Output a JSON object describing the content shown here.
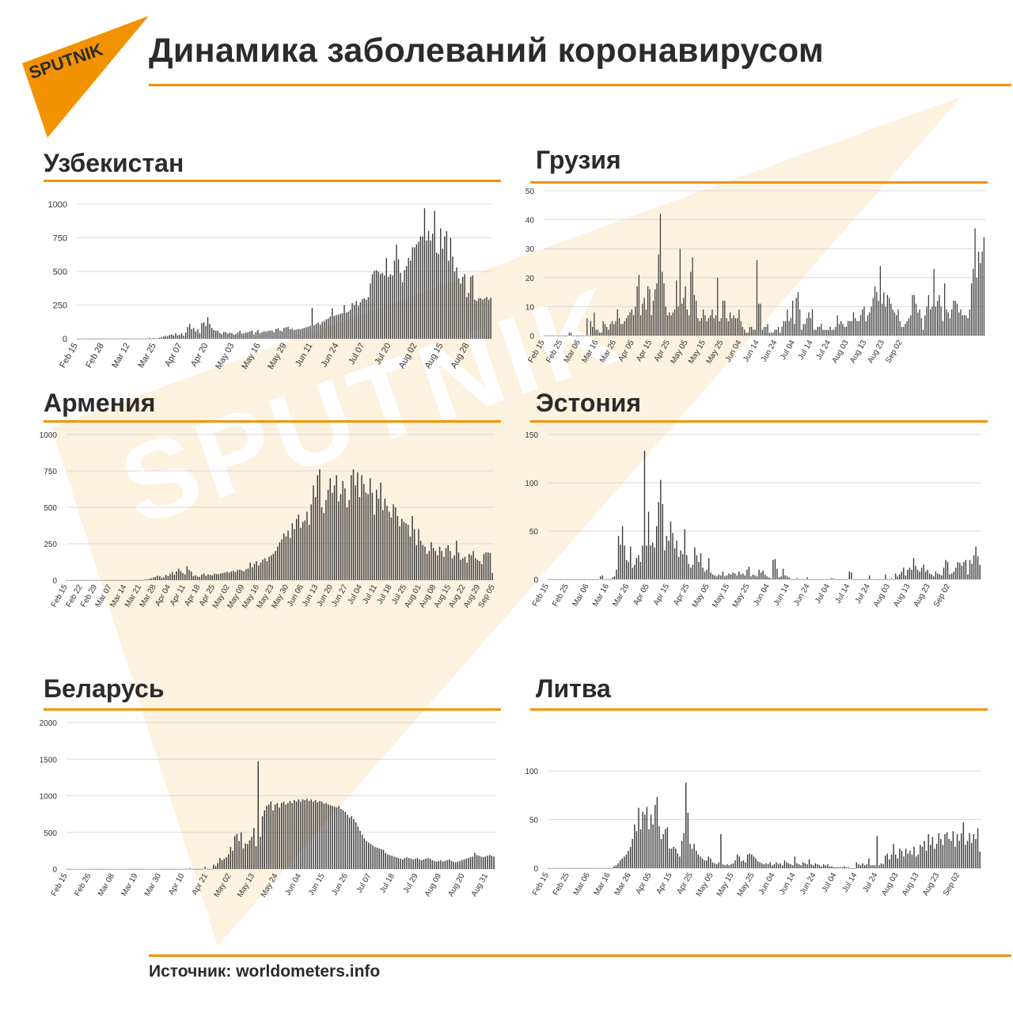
{
  "header": {
    "title": "Динамика заболеваний коронавирусом",
    "logo_text": "SPUTNIK",
    "watermark_text": "SPUTNIK"
  },
  "footer": {
    "source": "Источник: worldometers.info"
  },
  "colors": {
    "accent": "#f39200",
    "bar": "#3a3a3a",
    "grid": "#d9d9d9",
    "text": "#2b2b2b",
    "watermark": "#fdf1df"
  },
  "chart_data": [
    {
      "id": "uzbekistan",
      "title": "Узбекистан",
      "type": "bar",
      "y_ticks": [
        0,
        250,
        500,
        750,
        1000
      ],
      "ylim": [
        0,
        1000
      ],
      "x_ticks": [
        "Feb 15",
        "Feb 28",
        "Mar 12",
        "Mar 25",
        "Apr 07",
        "Apr 20",
        "May 03",
        "May 16",
        "May 29",
        "Jun 11",
        "Jun 24",
        "Jul 07",
        "Jul 20",
        "Aug 02",
        "Aug 15",
        "Aug 28"
      ],
      "x_start": "Feb 15",
      "grid": true,
      "daily_values": [
        0,
        0,
        0,
        0,
        0,
        0,
        0,
        0,
        0,
        0,
        0,
        0,
        0,
        0,
        0,
        0,
        0,
        0,
        0,
        0,
        0,
        0,
        0,
        0,
        0,
        0,
        0,
        0,
        0,
        0,
        0,
        0,
        0,
        0,
        0,
        3,
        7,
        0,
        6,
        2,
        4,
        8,
        11,
        16,
        22,
        18,
        28,
        32,
        24,
        40,
        25,
        30,
        39,
        22,
        45,
        86,
        110,
        72,
        80,
        55,
        70,
        42,
        115,
        122,
        95,
        160,
        110,
        80,
        65,
        58,
        60,
        42,
        35,
        50,
        48,
        38,
        45,
        42,
        30,
        35,
        45,
        58,
        38,
        40,
        45,
        48,
        55,
        62,
        30,
        50,
        65,
        40,
        48,
        55,
        52,
        58,
        60,
        62,
        48,
        72,
        78,
        60,
        55,
        80,
        85,
        90,
        70,
        75,
        65,
        68,
        72,
        70,
        75,
        80,
        85,
        90,
        95,
        230,
        100,
        110,
        120,
        105,
        125,
        130,
        145,
        150,
        165,
        225,
        170,
        175,
        180,
        185,
        190,
        250,
        195,
        200,
        215,
        265,
        250,
        280,
        245,
        270,
        295,
        300,
        290,
        310,
        410,
        480,
        505,
        510,
        500,
        480,
        490,
        470,
        600,
        460,
        480,
        470,
        580,
        700,
        590,
        490,
        420,
        510,
        540,
        600,
        580,
        680,
        680,
        700,
        720,
        760,
        760,
        970,
        730,
        800,
        730,
        780,
        950,
        640,
        630,
        820,
        670,
        760,
        800,
        580,
        750,
        610,
        500,
        530,
        450,
        410,
        460,
        480,
        310,
        340,
        460,
        470,
        290,
        280,
        300,
        300,
        290,
        300,
        310,
        290,
        305
      ]
    },
    {
      "id": "georgia",
      "title": "Грузия",
      "type": "bar",
      "y_ticks": [
        0,
        10,
        20,
        30,
        40,
        50
      ],
      "ylim": [
        0,
        50
      ],
      "x_ticks": [
        "Feb 15",
        "Feb 25",
        "Mar 06",
        "Mar 16",
        "Mar 26",
        "Apr 05",
        "Apr 15",
        "Apr 25",
        "May 05",
        "May 15",
        "May 25",
        "Jun 04",
        "Jun 14",
        "Jun 24",
        "Jul 04",
        "Jul 14",
        "Jul 24",
        "Aug 03",
        "Aug 13",
        "Aug 23",
        "Sep 02"
      ],
      "x_start": "Feb 15",
      "grid": true,
      "daily_values": [
        0,
        0,
        0,
        0,
        0,
        0,
        0,
        0,
        0,
        0,
        0,
        0,
        0,
        0,
        1,
        1,
        0,
        0,
        0,
        0,
        0,
        0,
        0,
        0,
        6,
        0,
        5,
        3,
        8,
        2,
        2,
        1,
        1,
        5,
        4,
        3,
        2,
        4,
        5,
        4,
        5,
        9,
        6,
        4,
        4,
        5,
        6,
        7,
        8,
        9,
        7,
        10,
        17,
        21,
        7,
        11,
        13,
        9,
        17,
        16,
        7,
        12,
        16,
        18,
        28,
        42,
        22,
        18,
        10,
        7,
        8,
        7,
        8,
        9,
        19,
        10,
        30,
        11,
        13,
        17,
        9,
        7,
        22,
        27,
        14,
        12,
        6,
        5,
        6,
        9,
        7,
        5,
        6,
        7,
        9,
        6,
        7,
        20,
        5,
        6,
        12,
        12,
        6,
        5,
        8,
        6,
        7,
        6,
        6,
        9,
        5,
        3,
        2,
        1,
        1,
        3,
        3,
        2,
        2,
        26,
        11,
        11,
        2,
        3,
        3,
        4,
        1,
        1,
        1,
        2,
        2,
        3,
        1,
        3,
        5,
        5,
        9,
        5,
        6,
        12,
        4,
        13,
        15,
        9,
        2,
        4,
        4,
        6,
        8,
        6,
        9,
        2,
        2,
        3,
        3,
        4,
        2,
        2,
        2,
        2,
        3,
        2,
        2,
        3,
        7,
        4,
        5,
        4,
        3,
        3,
        5,
        5,
        5,
        8,
        6,
        5,
        5,
        7,
        9,
        10,
        5,
        7,
        8,
        10,
        13,
        17,
        15,
        12,
        24,
        11,
        15,
        10,
        14,
        13,
        11,
        9,
        8,
        7,
        9,
        5,
        3,
        3,
        4,
        5,
        6,
        7,
        14,
        14,
        11,
        8,
        9,
        6,
        2,
        7,
        10,
        14,
        9,
        10,
        23,
        10,
        12,
        14,
        10,
        5,
        18,
        9,
        8,
        6,
        9,
        12,
        12,
        11,
        8,
        9,
        7,
        7,
        7,
        6,
        9,
        18,
        23,
        37,
        20,
        29,
        25,
        29,
        34
      ]
    },
    {
      "id": "armenia",
      "title": "Армения",
      "type": "bar",
      "y_ticks": [
        0,
        250,
        500,
        750,
        1000
      ],
      "ylim": [
        0,
        1000
      ],
      "x_ticks": [
        "Feb 15",
        "Feb 22",
        "Feb 29",
        "Mar 07",
        "Mar 14",
        "Mar 21",
        "Mar 28",
        "Apr 04",
        "Apr 11",
        "Apr 18",
        "Apr 25",
        "May 02",
        "May 09",
        "May 16",
        "May 23",
        "May 30",
        "Jun 06",
        "Jun 13",
        "Jun 20",
        "Jun 27",
        "Jul 04",
        "Jul 11",
        "Jul 18",
        "Jul 25",
        "Aug 01",
        "Aug 08",
        "Aug 15",
        "Aug 22",
        "Aug 29",
        "Sep 05"
      ],
      "x_start": "Feb 15",
      "grid": true,
      "daily_values": [
        0,
        0,
        0,
        0,
        0,
        0,
        0,
        0,
        0,
        0,
        0,
        0,
        0,
        0,
        0,
        0,
        0,
        0,
        0,
        0,
        0,
        0,
        0,
        0,
        0,
        0,
        0,
        0,
        0,
        0,
        0,
        0,
        0,
        0,
        0,
        1,
        0,
        3,
        5,
        8,
        12,
        18,
        22,
        30,
        25,
        14,
        20,
        35,
        28,
        42,
        55,
        38,
        60,
        78,
        62,
        48,
        40,
        95,
        70,
        58,
        28,
        32,
        24,
        22,
        38,
        45,
        30,
        40,
        36,
        32,
        44,
        41,
        40,
        46,
        48,
        52,
        58,
        50,
        60,
        65,
        55,
        70,
        72,
        68,
        60,
        75,
        80,
        120,
        88,
        110,
        130,
        100,
        120,
        140,
        150,
        130,
        160,
        170,
        180,
        200,
        230,
        260,
        280,
        320,
        300,
        340,
        290,
        390,
        350,
        420,
        450,
        360,
        400,
        410,
        470,
        380,
        520,
        650,
        570,
        720,
        760,
        500,
        460,
        550,
        620,
        700,
        600,
        650,
        720,
        540,
        590,
        680,
        630,
        500,
        550,
        720,
        760,
        650,
        740,
        570,
        720,
        660,
        600,
        590,
        700,
        600,
        450,
        620,
        560,
        670,
        480,
        560,
        510,
        470,
        430,
        520,
        500,
        440,
        370,
        420,
        400,
        390,
        380,
        300,
        440,
        350,
        240,
        350,
        270,
        240,
        230,
        180,
        200,
        260,
        220,
        200,
        170,
        230,
        200,
        160,
        220,
        240,
        200,
        150,
        170,
        270,
        190,
        140,
        150,
        160,
        120,
        180,
        170,
        200,
        150,
        140,
        130,
        110,
        180,
        190,
        190,
        185,
        50
      ]
    },
    {
      "id": "estonia",
      "title": "Эстония",
      "type": "bar",
      "y_ticks": [
        0,
        50,
        100,
        150
      ],
      "ylim": [
        0,
        150
      ],
      "x_ticks": [
        "Feb 15",
        "Feb 25",
        "Mar 06",
        "Mar 16",
        "Mar 26",
        "Apr 05",
        "Apr 15",
        "Apr 25",
        "May 05",
        "May 15",
        "May 25",
        "Jun 04",
        "Jun 14",
        "Jun 24",
        "Jul 04",
        "Jul 14",
        "Jul 24",
        "Aug 03",
        "Aug 13",
        "Aug 23",
        "Sep 02"
      ],
      "x_start": "Feb 15",
      "grid": true,
      "daily_values": [
        0,
        0,
        0,
        0,
        0,
        0,
        0,
        0,
        0,
        0,
        0,
        0,
        0,
        0,
        0,
        0,
        0,
        0,
        0,
        0,
        0,
        0,
        0,
        0,
        0,
        0,
        3,
        4,
        0,
        0,
        0,
        0,
        2,
        3,
        10,
        45,
        36,
        55,
        35,
        20,
        18,
        34,
        12,
        15,
        22,
        25,
        18,
        35,
        133,
        35,
        70,
        35,
        38,
        33,
        55,
        80,
        103,
        78,
        30,
        45,
        40,
        60,
        48,
        32,
        40,
        23,
        30,
        26,
        52,
        25,
        16,
        12,
        15,
        33,
        25,
        18,
        27,
        12,
        8,
        10,
        22,
        7,
        5,
        4,
        3,
        5,
        4,
        8,
        3,
        4,
        6,
        5,
        7,
        6,
        4,
        8,
        5,
        6,
        4,
        10,
        13,
        3,
        5,
        4,
        3,
        10,
        7,
        9,
        5,
        3,
        2,
        1,
        20,
        21,
        11,
        2,
        3,
        11,
        4,
        3,
        2,
        0,
        0,
        0,
        1,
        0,
        0,
        0,
        0,
        2,
        0,
        0,
        0,
        0,
        0,
        0,
        0,
        0,
        0,
        0,
        0,
        1,
        1,
        0,
        0,
        0,
        0,
        0,
        0,
        0,
        8,
        7,
        0,
        0,
        0,
        0,
        0,
        0,
        0,
        0,
        4,
        0,
        0,
        0,
        0,
        0,
        0,
        0,
        5,
        0,
        0,
        1,
        0,
        6,
        3,
        5,
        8,
        12,
        4,
        10,
        12,
        10,
        22,
        14,
        10,
        8,
        12,
        15,
        8,
        10,
        6,
        5,
        3,
        8,
        6,
        5,
        4,
        12,
        20,
        18,
        5,
        6,
        8,
        12,
        18,
        17,
        14,
        18,
        20,
        5,
        20,
        16,
        25,
        34,
        24,
        15
      ]
    },
    {
      "id": "belarus",
      "title": "Беларусь",
      "type": "bar",
      "y_ticks": [
        0,
        500,
        1000,
        1500,
        2000
      ],
      "ylim": [
        0,
        2000
      ],
      "x_ticks": [
        "Feb 15",
        "Feb 26",
        "Mar 08",
        "Mar 19",
        "Mar 30",
        "Apr 10",
        "Apr 21",
        "May 02",
        "May 13",
        "May 24",
        "Jun 04",
        "Jun 15",
        "Jun 26",
        "Jul 07",
        "Jul 18",
        "Jul 29",
        "Aug 09",
        "Aug 20",
        "Aug 31"
      ],
      "x_start": "Feb 15",
      "grid": true,
      "daily_values": [
        0,
        0,
        0,
        0,
        0,
        0,
        0,
        0,
        0,
        0,
        0,
        0,
        0,
        0,
        0,
        0,
        0,
        0,
        0,
        0,
        0,
        0,
        0,
        0,
        0,
        0,
        0,
        0,
        0,
        0,
        0,
        0,
        0,
        0,
        0,
        0,
        0,
        0,
        0,
        0,
        0,
        0,
        0,
        0,
        0,
        0,
        0,
        0,
        0,
        0,
        0,
        0,
        0,
        0,
        0,
        0,
        0,
        0,
        10,
        0,
        0,
        0,
        0,
        0,
        0,
        30,
        0,
        0,
        0,
        60,
        40,
        80,
        150,
        120,
        140,
        160,
        200,
        300,
        250,
        450,
        480,
        380,
        500,
        280,
        350,
        340,
        390,
        440,
        560,
        310,
        1470,
        440,
        720,
        800,
        860,
        880,
        920,
        800,
        880,
        900,
        840,
        900,
        920,
        880,
        900,
        930,
        900,
        940,
        920,
        950,
        920,
        950,
        940,
        960,
        930,
        950,
        920,
        940,
        910,
        930,
        920,
        890,
        900,
        880,
        870,
        860,
        850,
        840,
        860,
        820,
        800,
        780,
        740,
        700,
        720,
        680,
        640,
        580,
        520,
        470,
        420,
        380,
        360,
        340,
        320,
        300,
        290,
        280,
        270,
        260,
        220,
        200,
        190,
        180,
        170,
        160,
        150,
        140,
        130,
        150,
        160,
        150,
        140,
        130,
        140,
        150,
        130,
        120,
        130,
        140,
        150,
        140,
        120,
        110,
        100,
        110,
        120,
        100,
        110,
        120,
        130,
        110,
        100,
        90,
        100,
        110,
        120,
        130,
        140,
        150,
        160,
        170,
        220,
        190,
        180,
        170,
        160,
        170,
        180,
        190,
        180,
        170
      ]
    },
    {
      "id": "lithuania",
      "title": "Литва",
      "type": "bar",
      "y_ticks": [
        0,
        50,
        100
      ],
      "ylim": [
        0,
        100
      ],
      "x_ticks": [
        "Feb 15",
        "Feb 25",
        "Mar 06",
        "Mar 16",
        "Mar 26",
        "Apr 05",
        "Apr 15",
        "Apr 25",
        "May 05",
        "May 15",
        "May 25",
        "Jun 04",
        "Jun 14",
        "Jun 24",
        "Jul 04",
        "Jul 14",
        "Jul 24",
        "Aug 03",
        "Aug 13",
        "Aug 23",
        "Sep 02"
      ],
      "x_start": "Feb 15",
      "grid": true,
      "daily_values": [
        0,
        0,
        0,
        0,
        0,
        0,
        0,
        0,
        0,
        0,
        0,
        0,
        0,
        0,
        0,
        0,
        0,
        0,
        0,
        0,
        0,
        0,
        0,
        0,
        0,
        0,
        0,
        0,
        0,
        0,
        0,
        0,
        2,
        3,
        5,
        8,
        10,
        12,
        14,
        18,
        22,
        30,
        45,
        38,
        62,
        40,
        58,
        55,
        63,
        40,
        55,
        45,
        65,
        73,
        43,
        30,
        35,
        40,
        42,
        20,
        20,
        22,
        20,
        15,
        12,
        28,
        36,
        88,
        57,
        25,
        20,
        25,
        18,
        14,
        12,
        10,
        8,
        8,
        12,
        10,
        6,
        5,
        4,
        6,
        35,
        4,
        3,
        4,
        3,
        4,
        5,
        8,
        14,
        12,
        7,
        8,
        6,
        14,
        15,
        14,
        12,
        10,
        7,
        6,
        5,
        4,
        5,
        4,
        6,
        3,
        4,
        6,
        4,
        5,
        3,
        8,
        6,
        5,
        4,
        3,
        12,
        5,
        4,
        3,
        6,
        5,
        4,
        9,
        4,
        3,
        5,
        4,
        3,
        2,
        4,
        3,
        4,
        2,
        2,
        1,
        1,
        1,
        1,
        1,
        2,
        1,
        1,
        0,
        0,
        0,
        6,
        4,
        3,
        5,
        3,
        4,
        10,
        3,
        3,
        3,
        33,
        3,
        5,
        4,
        13,
        15,
        9,
        14,
        25,
        14,
        10,
        20,
        18,
        12,
        20,
        15,
        18,
        14,
        22,
        12,
        14,
        24,
        22,
        28,
        18,
        35,
        24,
        32,
        20,
        25,
        36,
        30,
        24,
        35,
        37,
        30,
        28,
        38,
        22,
        35,
        28,
        36,
        47,
        24,
        28,
        36,
        26,
        35,
        30,
        41,
        17
      ]
    }
  ]
}
